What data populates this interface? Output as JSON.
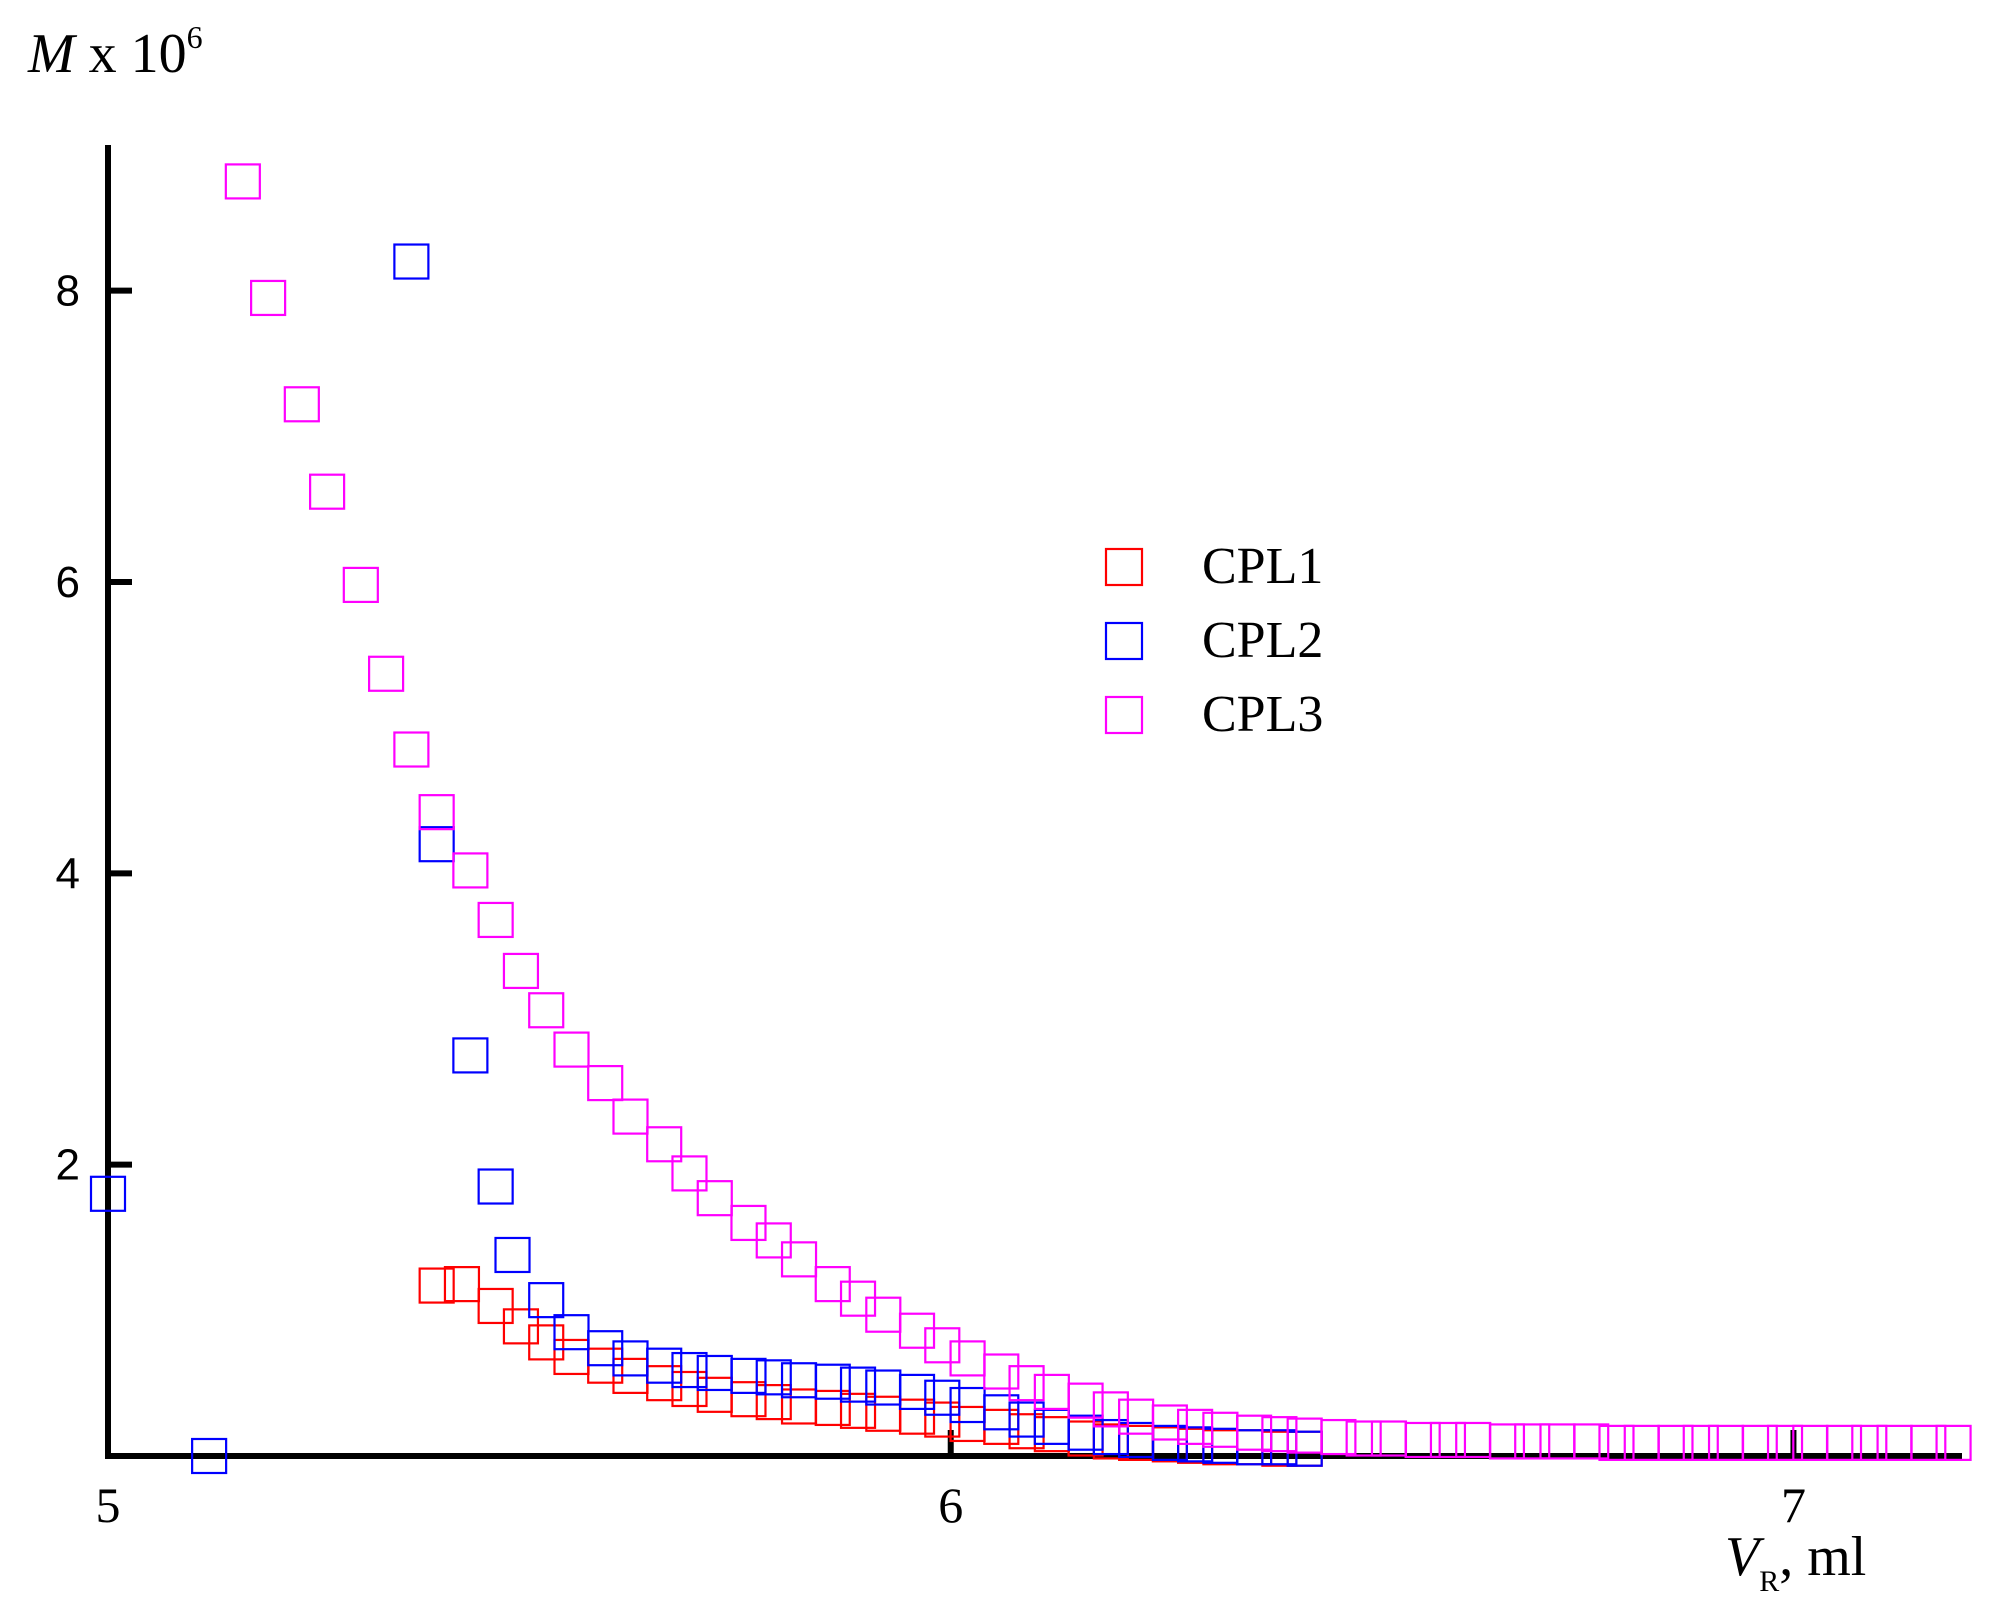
{
  "chart_data": {
    "type": "scatter",
    "xlim": [
      5,
      7.2
    ],
    "ylim": [
      0,
      9
    ],
    "grid": false,
    "legend_position": "center-right",
    "y_ticks": [
      2,
      4,
      6,
      8
    ],
    "x_ticks": [
      5,
      6,
      7
    ],
    "y_label": {
      "var": "M",
      "rest": " x 10",
      "exp": "6"
    },
    "x_label": {
      "var": "V",
      "sub": "R",
      "rest": ", ml"
    },
    "series": [
      {
        "name": "CPL1",
        "color": "#ff0000",
        "x": [
          5.39,
          5.42,
          5.46,
          5.49,
          5.52,
          5.55,
          5.59,
          5.62,
          5.66,
          5.69,
          5.72,
          5.76,
          5.79,
          5.82,
          5.86,
          5.89,
          5.92,
          5.96,
          5.99,
          6.02,
          6.06,
          6.09,
          6.12,
          6.16,
          6.19,
          6.22,
          6.26,
          6.29,
          6.32,
          6.36,
          6.39,
          6.42
        ],
        "y": [
          1.17,
          1.18,
          1.03,
          0.89,
          0.78,
          0.68,
          0.62,
          0.55,
          0.5,
          0.46,
          0.42,
          0.39,
          0.37,
          0.34,
          0.33,
          0.31,
          0.29,
          0.27,
          0.25,
          0.22,
          0.2,
          0.17,
          0.15,
          0.12,
          0.1,
          0.09,
          0.08,
          0.07,
          0.06,
          0.06,
          0.05,
          0.05
        ]
      },
      {
        "name": "CPL2",
        "color": "#0000ff",
        "x": [
          5.0,
          5.12,
          5.36,
          5.39,
          5.43,
          5.46,
          5.48,
          5.52,
          5.55,
          5.59,
          5.62,
          5.66,
          5.69,
          5.72,
          5.76,
          5.79,
          5.82,
          5.86,
          5.89,
          5.92,
          5.96,
          5.99,
          6.02,
          6.06,
          6.09,
          6.12,
          6.16,
          6.19,
          6.22,
          6.26,
          6.29,
          6.32,
          6.36,
          6.39,
          6.42
        ],
        "y": [
          1.8,
          0.0,
          8.2,
          4.2,
          2.75,
          1.85,
          1.38,
          1.07,
          0.85,
          0.74,
          0.67,
          0.62,
          0.59,
          0.57,
          0.55,
          0.54,
          0.52,
          0.51,
          0.49,
          0.47,
          0.44,
          0.4,
          0.35,
          0.3,
          0.25,
          0.2,
          0.16,
          0.13,
          0.11,
          0.09,
          0.08,
          0.07,
          0.06,
          0.06,
          0.05
        ]
      },
      {
        "name": "CPL3",
        "color": "#ff00ff",
        "x": [
          5.16,
          5.19,
          5.23,
          5.26,
          5.3,
          5.33,
          5.36,
          5.39,
          5.43,
          5.46,
          5.49,
          5.52,
          5.55,
          5.59,
          5.62,
          5.66,
          5.69,
          5.72,
          5.76,
          5.79,
          5.82,
          5.86,
          5.89,
          5.92,
          5.96,
          5.99,
          6.02,
          6.06,
          6.09,
          6.12,
          6.16,
          6.19,
          6.22,
          6.26,
          6.29,
          6.32,
          6.36,
          6.39,
          6.42,
          6.46,
          6.49,
          6.52,
          6.56,
          6.59,
          6.62,
          6.66,
          6.69,
          6.72,
          6.76,
          6.79,
          6.82,
          6.86,
          6.89,
          6.92,
          6.96,
          6.99,
          7.02,
          7.06,
          7.09,
          7.12,
          7.16,
          7.19
        ],
        "y": [
          8.75,
          7.95,
          7.22,
          6.62,
          5.98,
          5.37,
          4.85,
          4.42,
          4.02,
          3.68,
          3.33,
          3.06,
          2.79,
          2.56,
          2.33,
          2.14,
          1.94,
          1.77,
          1.6,
          1.48,
          1.35,
          1.18,
          1.08,
          0.97,
          0.86,
          0.76,
          0.67,
          0.58,
          0.5,
          0.44,
          0.38,
          0.32,
          0.27,
          0.23,
          0.2,
          0.18,
          0.16,
          0.15,
          0.14,
          0.13,
          0.12,
          0.12,
          0.11,
          0.11,
          0.11,
          0.1,
          0.1,
          0.1,
          0.1,
          0.09,
          0.09,
          0.09,
          0.09,
          0.09,
          0.09,
          0.09,
          0.09,
          0.09,
          0.09,
          0.09,
          0.09,
          0.09
        ]
      }
    ]
  }
}
